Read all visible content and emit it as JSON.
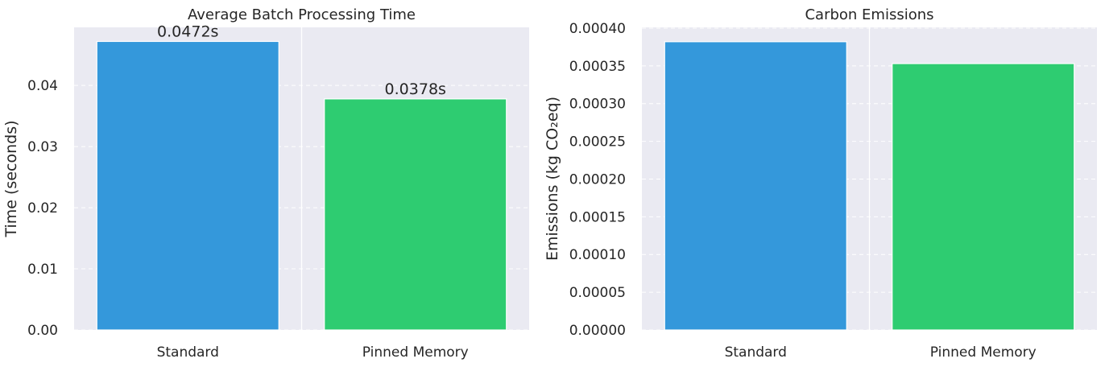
{
  "chart_data": [
    {
      "type": "bar",
      "title": "Average Batch Processing Time",
      "xlabel": "",
      "ylabel": "Time (seconds)",
      "categories": [
        "Standard",
        "Pinned Memory"
      ],
      "values": [
        0.0472,
        0.0378
      ],
      "data_labels": [
        "0.0472s",
        "0.0378s"
      ],
      "colors": [
        "#3498db",
        "#2ecc71"
      ],
      "ylim": [
        0,
        0.0495
      ],
      "yticks": [
        0.0,
        0.01,
        0.02,
        0.03,
        0.04
      ],
      "ytick_labels": [
        "0.00",
        "0.01",
        "0.02",
        "0.03",
        "0.04"
      ],
      "grid": true,
      "background": "#eaeaf2"
    },
    {
      "type": "bar",
      "title": "Carbon Emissions",
      "xlabel": "",
      "ylabel": "Emissions (kg CO₂eq)",
      "categories": [
        "Standard",
        "Pinned Memory"
      ],
      "values": [
        0.000382,
        0.000353
      ],
      "data_labels": [],
      "colors": [
        "#3498db",
        "#2ecc71"
      ],
      "ylim": [
        0,
        0.000401
      ],
      "yticks": [
        0.0,
        5e-05,
        0.0001,
        0.00015,
        0.0002,
        0.00025,
        0.0003,
        0.00035,
        0.0004
      ],
      "ytick_labels": [
        "0.00000",
        "0.00005",
        "0.00010",
        "0.00015",
        "0.00020",
        "0.00025",
        "0.00030",
        "0.00035",
        "0.00040"
      ],
      "grid": true,
      "background": "#eaeaf2"
    }
  ]
}
